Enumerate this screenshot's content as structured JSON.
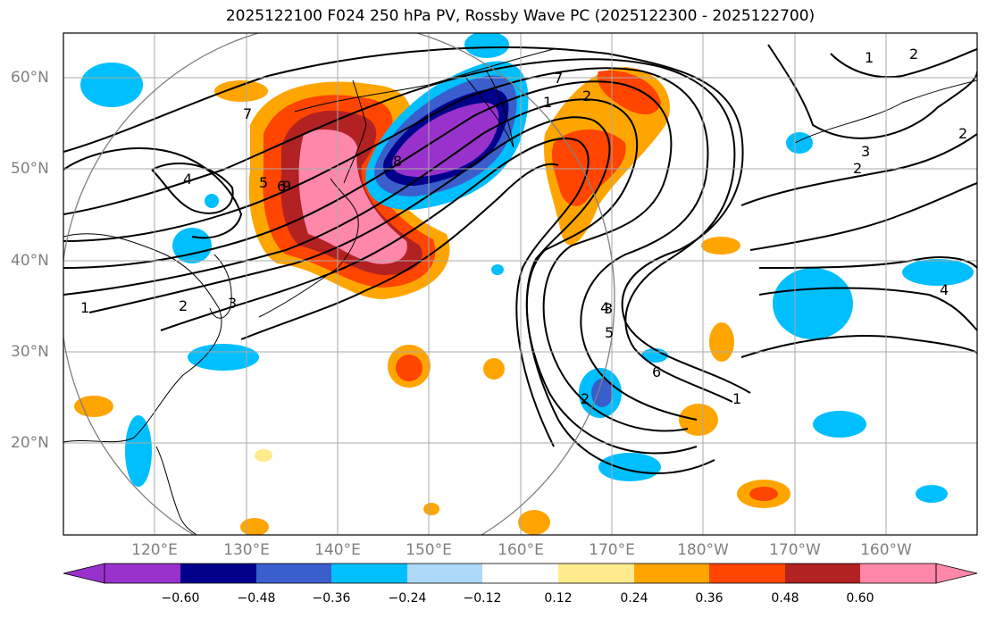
{
  "title": "2025122100 F024 250 hPa PV, Rossby Wave PC (2025122300 - 2025122700)",
  "lat_labels": [
    "60°N",
    "50°N",
    "40°N",
    "30°N",
    "20°N"
  ],
  "lon_labels": [
    "120°E",
    "130°E",
    "140°E",
    "150°E",
    "160°E",
    "170°E",
    "180°W",
    "170°W",
    "160°W"
  ],
  "colorbar": {
    "labels": [
      "−0.60",
      "−0.48",
      "−0.36",
      "−0.24",
      "−0.12",
      "0.12",
      "0.24",
      "0.36",
      "0.48",
      "0.60"
    ],
    "colors": [
      "#9932cc",
      "#00008b",
      "#3a5fcd",
      "#00bfff",
      "#add8f6",
      "#ffffff",
      "#ffeb8b",
      "#ffa500",
      "#ff4500",
      "#b22222",
      "#ff88aa"
    ]
  },
  "contour_labels": [
    "1",
    "2",
    "3",
    "4",
    "5",
    "6",
    "7",
    "8",
    "9",
    "1",
    "2",
    "3",
    "4",
    "5",
    "6",
    "1",
    "2",
    "2",
    "3",
    "2",
    "4",
    "7",
    "2",
    "1"
  ],
  "colors": {
    "land_line": "#000000",
    "grid": "#a9a9a9",
    "circle": "#808080"
  }
}
